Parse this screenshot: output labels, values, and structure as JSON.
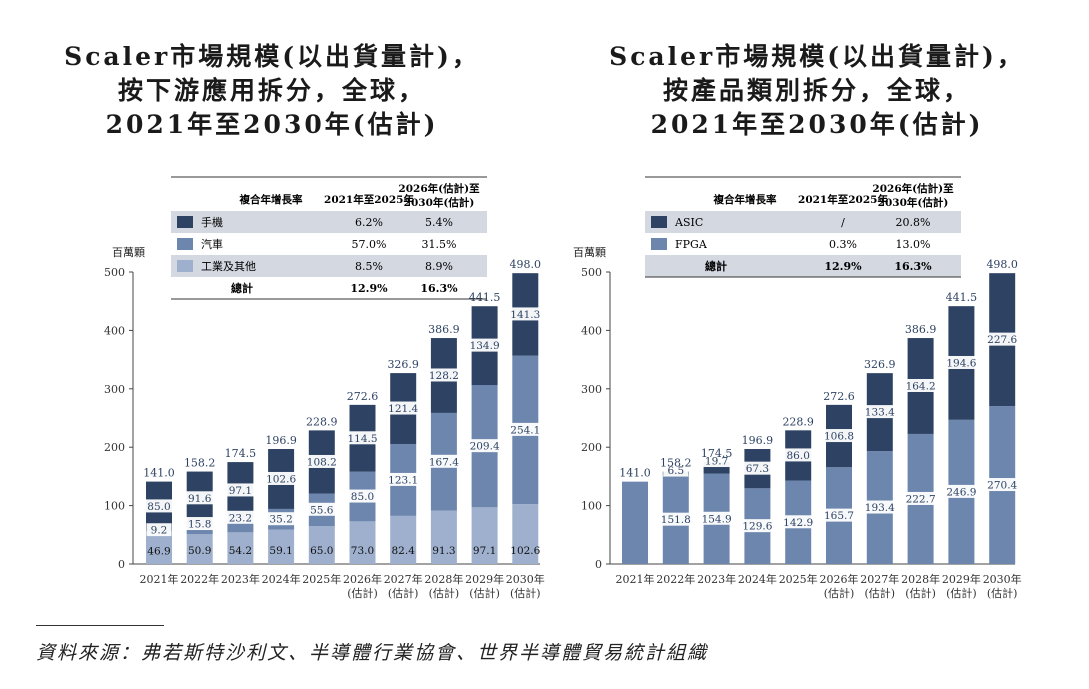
{
  "y_axis_unit": "百萬顆",
  "source_text": "資料來源：弗若斯特沙利文、半導體行業協會、世界半導體貿易統計組織",
  "colors": {
    "dark": "#2e4364",
    "mid": "#6d86ae",
    "light": "#9eb0cd",
    "table_band": "#d4d9e1",
    "label_box": "#ffffff"
  },
  "chart_data": [
    {
      "type": "bar",
      "stacked": true,
      "title_lines": [
        "Scaler市場規模(以出貨量計)，",
        "按下游應用拆分，全球，",
        "2021年至2030年(估計)"
      ],
      "ylabel": "百萬顆",
      "ylim": [
        0,
        500
      ],
      "yticks": [
        0,
        100,
        200,
        300,
        400,
        500
      ],
      "grid": false,
      "categories": [
        [
          "2021年"
        ],
        [
          "2022年"
        ],
        [
          "2023年"
        ],
        [
          "2024年"
        ],
        [
          "2025年"
        ],
        [
          "2026年",
          "(估計)"
        ],
        [
          "2027年",
          "(估計)"
        ],
        [
          "2028年",
          "(估計)"
        ],
        [
          "2029年",
          "(估計)"
        ],
        [
          "2030年",
          "(估計)"
        ]
      ],
      "series": [
        {
          "name": "工業及其他",
          "color": "#9eb0cd",
          "values": [
            46.9,
            50.9,
            54.2,
            59.1,
            65.0,
            73.0,
            82.4,
            91.3,
            97.1,
            102.6
          ],
          "labels": [
            "46.9",
            "50.9",
            "54.2",
            "59.1",
            "65.0",
            "73.0",
            "82.4",
            "91.3",
            "97.1",
            "102.6"
          ]
        },
        {
          "name": "汽車",
          "color": "#6d86ae",
          "values": [
            9.2,
            15.8,
            23.2,
            35.2,
            55.6,
            85.0,
            123.1,
            167.4,
            209.4,
            254.1
          ],
          "labels": [
            "9.2",
            "15.8",
            "23.2",
            "35.2",
            "55.6",
            "85.0",
            "123.1",
            "167.4",
            "209.4",
            "254.1"
          ]
        },
        {
          "name": "手機",
          "color": "#2e4364",
          "values": [
            85.0,
            91.6,
            97.1,
            102.6,
            108.2,
            114.5,
            121.4,
            128.2,
            134.9,
            141.3
          ],
          "labels": [
            "85.0",
            "91.6",
            "97.1",
            "102.6",
            "108.2",
            "114.5",
            "121.4",
            "128.2",
            "134.9",
            "141.3"
          ]
        }
      ],
      "totals": [
        "141.0",
        "158.2",
        "174.5",
        "196.9",
        "228.9",
        "272.6",
        "326.9",
        "386.9",
        "441.5",
        "498.0"
      ],
      "cagr_table": {
        "headers": [
          "複合年增長率",
          "2021年至2025年",
          "2026年(估計)至",
          "2030年(估計)"
        ],
        "rows": [
          {
            "label": "手機",
            "color": "#2e4364",
            "v1": "6.2%",
            "v2": "5.4%"
          },
          {
            "label": "汽車",
            "color": "#6d86ae",
            "v1": "57.0%",
            "v2": "31.5%"
          },
          {
            "label": "工業及其他",
            "color": "#9eb0cd",
            "v1": "8.5%",
            "v2": "8.9%"
          }
        ],
        "total": {
          "label": "總計",
          "v1": "12.9%",
          "v2": "16.3%"
        }
      }
    },
    {
      "type": "bar",
      "stacked": true,
      "title_lines": [
        "Scaler市場規模(以出貨量計)，",
        "按產品類別拆分，全球，",
        "2021年至2030年(估計)"
      ],
      "ylabel": "百萬顆",
      "ylim": [
        0,
        500
      ],
      "yticks": [
        0,
        100,
        200,
        300,
        400,
        500
      ],
      "grid": false,
      "categories": [
        [
          "2021年"
        ],
        [
          "2022年"
        ],
        [
          "2023年"
        ],
        [
          "2024年"
        ],
        [
          "2025年"
        ],
        [
          "2026年",
          "(估計)"
        ],
        [
          "2027年",
          "(估計)"
        ],
        [
          "2028年",
          "(估計)"
        ],
        [
          "2029年",
          "(估計)"
        ],
        [
          "2030年",
          "(估計)"
        ]
      ],
      "series": [
        {
          "name": "FPGA",
          "color": "#6d86ae",
          "values": [
            141.0,
            151.8,
            154.9,
            129.6,
            142.9,
            165.7,
            193.4,
            222.7,
            246.9,
            270.4
          ],
          "labels": [
            "",
            "151.8",
            "154.9",
            "129.6",
            "142.9",
            "165.7",
            "193.4",
            "222.7",
            "246.9",
            "270.4"
          ]
        },
        {
          "name": "ASIC",
          "color": "#2e4364",
          "values": [
            0,
            6.5,
            19.7,
            67.3,
            86.0,
            106.8,
            133.4,
            164.2,
            194.6,
            227.6
          ],
          "labels": [
            "",
            "6.5",
            "19.7",
            "67.3",
            "86.0",
            "106.8",
            "133.4",
            "164.2",
            "194.6",
            "227.6"
          ]
        }
      ],
      "totals": [
        "141.0",
        "158.2",
        "174.5",
        "196.9",
        "228.9",
        "272.6",
        "326.9",
        "386.9",
        "441.5",
        "498.0"
      ],
      "cagr_table": {
        "headers": [
          "複合年增長率",
          "2021年至2025年",
          "2026年(估計)至",
          "2030年(估計)"
        ],
        "rows": [
          {
            "label": "ASIC",
            "color": "#2e4364",
            "v1": "/",
            "v2": "20.8%"
          },
          {
            "label": "FPGA",
            "color": "#6d86ae",
            "v1": "0.3%",
            "v2": "13.0%"
          }
        ],
        "total": {
          "label": "總計",
          "v1": "12.9%",
          "v2": "16.3%"
        }
      }
    }
  ]
}
